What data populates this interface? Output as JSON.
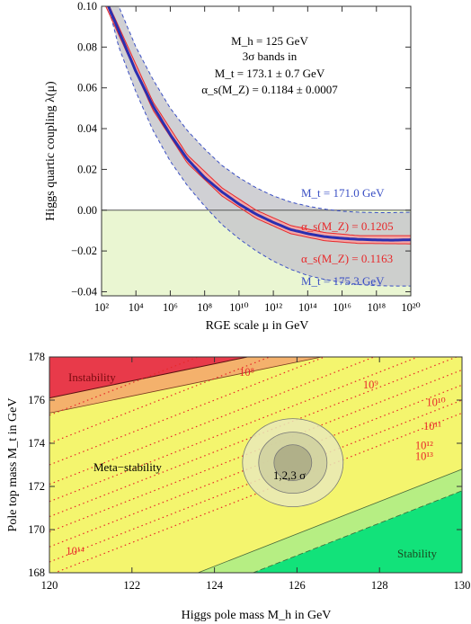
{
  "chart_data": [
    {
      "type": "line",
      "xlabel": "RGE scale μ in GeV",
      "ylabel": "Higgs quartic coupling λ(μ)",
      "xscale": "log",
      "xlim": [
        100,
        1e+20
      ],
      "ylim": [
        -0.042,
        0.1
      ],
      "x_tick_labels": [
        "10²",
        "10⁴",
        "10⁶",
        "10⁸",
        "10¹⁰",
        "10¹²",
        "10¹⁴",
        "10¹⁶",
        "10¹⁸",
        "10²⁰"
      ],
      "x_tick_values": [
        100.0,
        10000.0,
        1000000.0,
        100000000.0,
        10000000000.0,
        1000000000000.0,
        100000000000000.0,
        1e+16,
        1e+18,
        1e+20
      ],
      "y_tick_labels": [
        "0.10",
        "0.08",
        "0.06",
        "0.04",
        "0.02",
        "0.00",
        "−0.02",
        "−0.04"
      ],
      "y_tick_values": [
        0.1,
        0.08,
        0.06,
        0.04,
        0.02,
        0.0,
        -0.02,
        -0.04
      ],
      "annotation_lines": [
        "M_h = 125 GeV",
        "3σ bands in",
        "M_t = 173.1 ± 0.7 GeV",
        "α_s(M_Z) = 0.1184 ± 0.0007"
      ],
      "band_labels": {
        "mt_low": "M_t = 171.0 GeV",
        "as_high": "α_s(M_Z) = 0.1205",
        "as_low": "α_s(M_Z) = 0.1163",
        "mt_high": "M_t = 175.3 GeV"
      },
      "shaded_region": "λ < 0 shaded light green",
      "series": [
        {
          "name": "central",
          "color": "#2a2fb0",
          "x_log10": [
            2.4,
            3,
            4,
            5,
            6,
            7,
            8,
            9,
            10,
            11,
            12,
            13,
            14,
            15,
            16,
            17,
            18,
            19,
            20
          ],
          "y": [
            0.1,
            0.088,
            0.068,
            0.051,
            0.037,
            0.025,
            0.016,
            0.009,
            0.003,
            -0.002,
            -0.006,
            -0.0095,
            -0.0115,
            -0.013,
            -0.0138,
            -0.0143,
            -0.0146,
            -0.0147,
            -0.0145
          ]
        },
        {
          "name": "M_t = 171.0 GeV",
          "color": "#3a4fc4",
          "style": "dashed",
          "x_log10": [
            3,
            4,
            5,
            6,
            7,
            8,
            9,
            10,
            11,
            12,
            13,
            14,
            15,
            16,
            17,
            18,
            19,
            20
          ],
          "y": [
            0.1,
            0.08,
            0.064,
            0.05,
            0.039,
            0.03,
            0.022,
            0.016,
            0.011,
            0.007,
            0.004,
            0.002,
            0.0005,
            -0.0005,
            -0.001,
            -0.0012,
            -0.0012,
            -0.001
          ]
        },
        {
          "name": "M_t = 175.3 GeV",
          "color": "#3a4fc4",
          "style": "dashed",
          "x_log10": [
            2.4,
            3,
            4,
            5,
            6,
            7,
            8,
            9,
            10,
            11,
            12,
            13,
            14,
            15,
            16,
            17,
            18,
            19,
            20
          ],
          "y": [
            0.1,
            0.08,
            0.058,
            0.039,
            0.024,
            0.012,
            0.002,
            -0.007,
            -0.014,
            -0.02,
            -0.025,
            -0.029,
            -0.032,
            -0.034,
            -0.0355,
            -0.0365,
            -0.037,
            -0.0372,
            -0.0372
          ]
        },
        {
          "name": "α_s(M_Z) = 0.1205",
          "color": "#e8282a",
          "x_log10": [
            3,
            5,
            7,
            9,
            11,
            13,
            15,
            17,
            20
          ],
          "y": [
            0.09,
            0.053,
            0.027,
            0.011,
            0.0,
            -0.0075,
            -0.011,
            -0.0125,
            -0.0125
          ]
        },
        {
          "name": "α_s(M_Z) = 0.1163",
          "color": "#e8282a",
          "x_log10": [
            3,
            5,
            7,
            9,
            11,
            13,
            15,
            17,
            20
          ],
          "y": [
            0.086,
            0.049,
            0.023,
            0.007,
            -0.004,
            -0.0115,
            -0.015,
            -0.0163,
            -0.0165
          ]
        }
      ]
    },
    {
      "type": "heatmap",
      "xlabel": "Higgs pole mass M_h in GeV",
      "ylabel": "Pole top mass M_t in GeV",
      "xlim": [
        120,
        130
      ],
      "ylim": [
        168,
        178
      ],
      "x_tick_labels": [
        "120",
        "122",
        "124",
        "126",
        "128",
        "130"
      ],
      "y_tick_labels": [
        "168",
        "170",
        "172",
        "174",
        "176",
        "178"
      ],
      "region_labels": {
        "instability": "Instability",
        "metastability": "Meta−stability",
        "stability": "Stability"
      },
      "region_colors": {
        "instability": "#e83a4a",
        "metastability": "#f3f36c",
        "stability": "#17e37a"
      },
      "ellipse_label": "1,2,3 σ",
      "ellipse_center": [
        125.9,
        173.1
      ],
      "contour_labels": [
        "10⁸",
        "10⁹",
        "10¹⁰",
        "10¹¹",
        "10¹²",
        "10¹³",
        "10¹⁴"
      ],
      "contour_label_points": [
        {
          "label": "10⁸",
          "x": 124.6,
          "y": 177.3
        },
        {
          "label": "10⁹",
          "x": 127.6,
          "y": 176.7
        },
        {
          "label": "10¹⁰",
          "x": 129.6,
          "y": 175.9
        },
        {
          "label": "10¹¹",
          "x": 129.5,
          "y": 174.8
        },
        {
          "label": "10¹²",
          "x": 129.3,
          "y": 173.9
        },
        {
          "label": "10¹³",
          "x": 129.3,
          "y": 173.4
        },
        {
          "label": "10¹⁴",
          "x": 120.4,
          "y": 169.0
        }
      ]
    }
  ]
}
